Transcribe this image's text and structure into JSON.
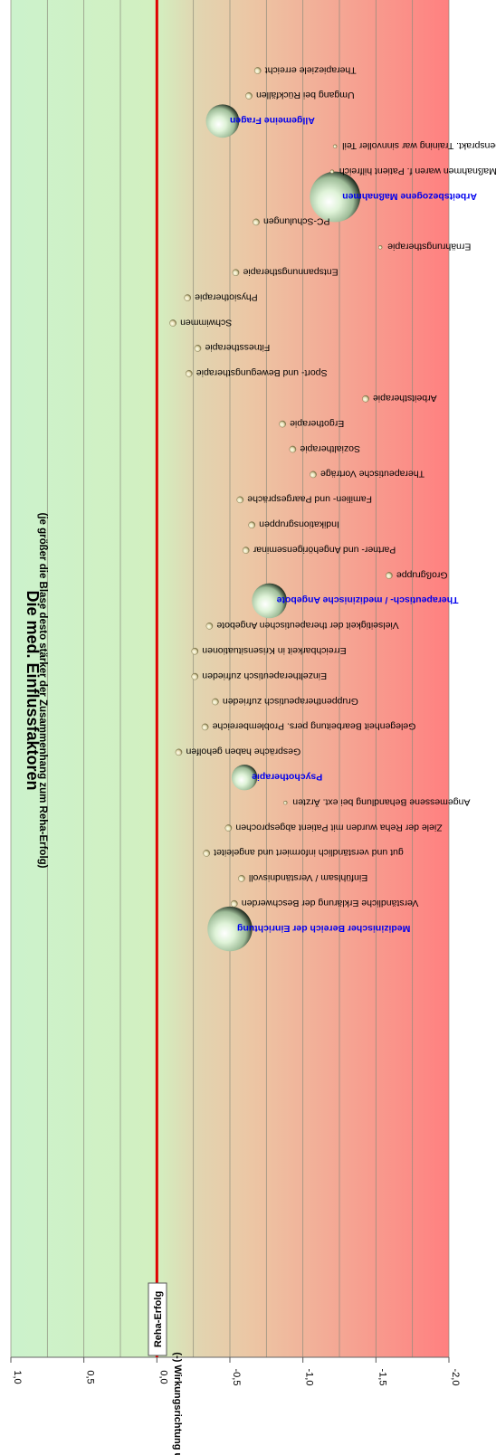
{
  "chart_data": {
    "type": "bubble",
    "orientation": "rotated-180",
    "title": "Die med. Einflussfaktoren",
    "subtitle": "(je größer die Blase desto stärker der Zusammenhang zum Reha-Erfolg)",
    "xlabel": "(-)  Wirkungsrichtung und -stärke  (+)",
    "xlim": [
      -2.0,
      1.0
    ],
    "ticks": [
      "1,0",
      "0,5",
      "0,0",
      "-0,5",
      "-1,0",
      "-1,5",
      "-2,0"
    ],
    "tick_values": [
      1.0,
      0.5,
      0.0,
      -0.5,
      -1.0,
      -1.5,
      -2.0
    ],
    "grid": true,
    "reference_value": 0.0,
    "reference_label": "Reha-Erfolg",
    "colors": {
      "positive": "#ccf2cc",
      "neutral": "#e2d4b0",
      "negative": "#ff8080",
      "reference_line": "#e00000",
      "category_text": "#0000ee"
    },
    "points": [
      {
        "label": "Medizinischer Bereich der Einrichtung",
        "value": -0.5,
        "size": 3.6,
        "category": true
      },
      {
        "label": "Verständliche Erklärung der Beschwerden",
        "value": -0.53,
        "size": 0.28
      },
      {
        "label": "Einfühlsam / Verständnisvoll",
        "value": -0.58,
        "size": 0.28
      },
      {
        "label": "gut und verständlich informiert und angeleitet",
        "value": -0.34,
        "size": 0.28
      },
      {
        "label": "Ziele der Reha wurden mit Patient abgesprochen",
        "value": -0.49,
        "size": 0.28
      },
      {
        "label": "Angemessene Behandlung bei ext. Ärzten",
        "value": -0.88,
        "size": 0.1
      },
      {
        "label": "Psychotherapie",
        "value": -0.6,
        "size": 1.2,
        "category": true
      },
      {
        "label": "Gespräche haben geholfen",
        "value": -0.15,
        "size": 0.28
      },
      {
        "label": "Gelegenheit Bearbeitung pers. Problembereiche",
        "value": -0.33,
        "size": 0.28
      },
      {
        "label": "Gruppentherapeutisch zufrieden",
        "value": -0.4,
        "size": 0.28
      },
      {
        "label": "Einzeltherapeutisch zufrieden",
        "value": -0.26,
        "size": 0.28
      },
      {
        "label": "Erreichbarkeit in Krisensituationen",
        "value": -0.26,
        "size": 0.28
      },
      {
        "label": "Vielseitigkeit der therapeutischen Angebote",
        "value": -0.36,
        "size": 0.28
      },
      {
        "label": "Therapeutisch- / medizinische Angebote",
        "value": -0.77,
        "size": 2.2,
        "category": true
      },
      {
        "label": "Großgruppe",
        "value": -1.59,
        "size": 0.28
      },
      {
        "label": "Partner- und Angehörigenseminar",
        "value": -0.61,
        "size": 0.28
      },
      {
        "label": "Indikationsgruppen",
        "value": -0.65,
        "size": 0.28
      },
      {
        "label": "Familien- und Paargespräche",
        "value": -0.57,
        "size": 0.28
      },
      {
        "label": "Therapeutische Vorträge",
        "value": -1.07,
        "size": 0.28
      },
      {
        "label": "Sozialtherapie",
        "value": -0.93,
        "size": 0.28
      },
      {
        "label": "Ergotherapie",
        "value": -0.86,
        "size": 0.28
      },
      {
        "label": "Arbeitstherapie",
        "value": -1.43,
        "size": 0.28
      },
      {
        "label": "Sport- und Bewegungstherapie",
        "value": -0.22,
        "size": 0.28
      },
      {
        "label": "Fitnesstherapie",
        "value": -0.28,
        "size": 0.28
      },
      {
        "label": "Schwimmen",
        "value": -0.11,
        "size": 0.28
      },
      {
        "label": "Physiotherapie",
        "value": -0.21,
        "size": 0.28
      },
      {
        "label": "Entspannungstherapie",
        "value": -0.54,
        "size": 0.28
      },
      {
        "label": "Ernährungstherapie",
        "value": -1.53,
        "size": 0.1
      },
      {
        "label": "PC-Schulungen",
        "value": -0.68,
        "size": 0.28
      },
      {
        "label": "Arbeitsbezogene Maßnahmen",
        "value": -1.22,
        "size": 4.6,
        "category": true
      },
      {
        "label": "Maßnahmen waren f. Patient hilfreich",
        "value": -1.2,
        "size": 0.1
      },
      {
        "label": "Lebensprakt. Training war sinnvoller Teil",
        "value": -1.22,
        "size": 0.1
      },
      {
        "label": "Allgemeine Fragen",
        "value": -0.45,
        "size": 2.0,
        "category": true
      },
      {
        "label": "Umgang bei Rückfällen",
        "value": -0.63,
        "size": 0.28
      },
      {
        "label": "Therapieziele erreicht",
        "value": -0.69,
        "size": 0.28
      }
    ]
  }
}
